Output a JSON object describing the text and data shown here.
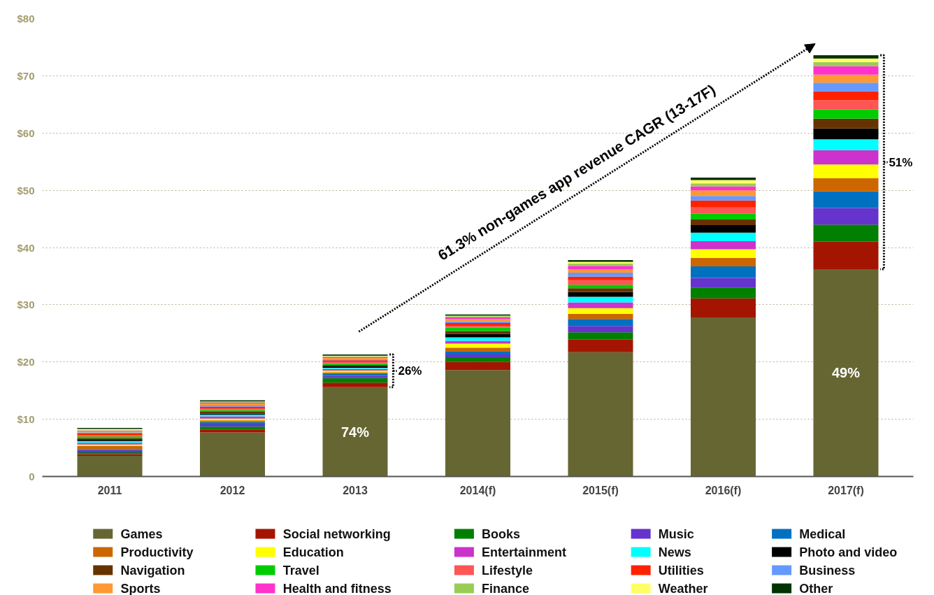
{
  "chart_data": {
    "type": "bar",
    "stacked": true,
    "categories": [
      "2011",
      "2012",
      "2013",
      "2014(f)",
      "2015(f)",
      "2016(f)",
      "2017(f)"
    ],
    "ylim": [
      0,
      80
    ],
    "yticks": [
      {
        "value": 0,
        "label": "0"
      },
      {
        "value": 10,
        "label": "$10"
      },
      {
        "value": 20,
        "label": "$20"
      },
      {
        "value": 30,
        "label": "$30"
      },
      {
        "value": 40,
        "label": "$40"
      },
      {
        "value": 50,
        "label": "$50"
      },
      {
        "value": 60,
        "label": "$60"
      },
      {
        "value": 70,
        "label": "$70"
      },
      {
        "value": 80,
        "label": "$80"
      }
    ],
    "grid": "y",
    "legend": "bottom",
    "series": [
      {
        "name": "Games",
        "color": "#666633",
        "values": [
          3.6,
          7.7,
          15.6,
          18.6,
          21.7,
          27.8,
          36.2
        ]
      },
      {
        "name": "Social networking",
        "color": "#a31500",
        "values": [
          0.3,
          0.5,
          0.8,
          1.4,
          2.2,
          3.3,
          4.8
        ]
      },
      {
        "name": "Books",
        "color": "#007f00",
        "values": [
          0.3,
          0.5,
          0.8,
          0.7,
          1.3,
          1.9,
          3.0
        ]
      },
      {
        "name": "Music",
        "color": "#6633cc",
        "values": [
          0.4,
          0.4,
          0.4,
          0.6,
          1.1,
          1.7,
          2.9
        ]
      },
      {
        "name": "Medical",
        "color": "#0070c0",
        "values": [
          0.2,
          0.4,
          0.3,
          0.6,
          1.2,
          2.0,
          2.9
        ]
      },
      {
        "name": "Productivity",
        "color": "#cc6600",
        "values": [
          0.5,
          0.3,
          0.3,
          0.6,
          0.9,
          1.5,
          2.3
        ]
      },
      {
        "name": "Education",
        "color": "#ffff00",
        "values": [
          0.3,
          0.3,
          0.3,
          0.7,
          1.0,
          1.5,
          2.4
        ]
      },
      {
        "name": "Entertainment",
        "color": "#cc33cc",
        "values": [
          0.3,
          0.4,
          0.3,
          0.5,
          1.0,
          1.4,
          2.5
        ]
      },
      {
        "name": "News",
        "color": "#00ffff",
        "values": [
          0.3,
          0.3,
          0.2,
          0.6,
          1.0,
          1.5,
          1.9
        ]
      },
      {
        "name": "Photo and video",
        "color": "#000000",
        "values": [
          0.2,
          0.2,
          0.3,
          0.6,
          0.8,
          1.3,
          1.9
        ]
      },
      {
        "name": "Navigation",
        "color": "#663300",
        "values": [
          0.3,
          0.3,
          0.2,
          0.5,
          0.7,
          1.0,
          1.7
        ]
      },
      {
        "name": "Travel",
        "color": "#00cc00",
        "values": [
          0.3,
          0.3,
          0.3,
          0.6,
          0.6,
          1.0,
          1.6
        ]
      },
      {
        "name": "Lifestyle",
        "color": "#ff5555",
        "values": [
          0.2,
          0.3,
          0.2,
          0.3,
          0.8,
          1.1,
          1.6
        ]
      },
      {
        "name": "Utilities",
        "color": "#ff2200",
        "values": [
          0.3,
          0.3,
          0.3,
          0.5,
          0.6,
          1.2,
          1.6
        ]
      },
      {
        "name": "Business",
        "color": "#6699ff",
        "values": [
          0.2,
          0.2,
          0.2,
          0.3,
          0.7,
          0.8,
          1.5
        ]
      },
      {
        "name": "Sports",
        "color": "#ff9933",
        "values": [
          0.2,
          0.3,
          0.2,
          0.4,
          0.6,
          1.0,
          1.4
        ]
      },
      {
        "name": "Health and fitness",
        "color": "#ff33cc",
        "values": [
          0.1,
          0.2,
          0.2,
          0.3,
          0.6,
          0.7,
          1.5
        ]
      },
      {
        "name": "Finance",
        "color": "#99cc55",
        "values": [
          0.1,
          0.1,
          0.1,
          0.2,
          0.4,
          0.5,
          0.7
        ]
      },
      {
        "name": "Weather",
        "color": "#ffff66",
        "values": [
          0.2,
          0.1,
          0.1,
          0.1,
          0.3,
          0.6,
          0.6
        ]
      },
      {
        "name": "Other",
        "color": "#003300",
        "values": [
          0.2,
          0.2,
          0.2,
          0.2,
          0.3,
          0.4,
          0.6
        ]
      }
    ],
    "annotations": [
      "61.3% non-games app revenue CAGR (13-17F)",
      "74%",
      "26%",
      "49%",
      "51%"
    ]
  }
}
